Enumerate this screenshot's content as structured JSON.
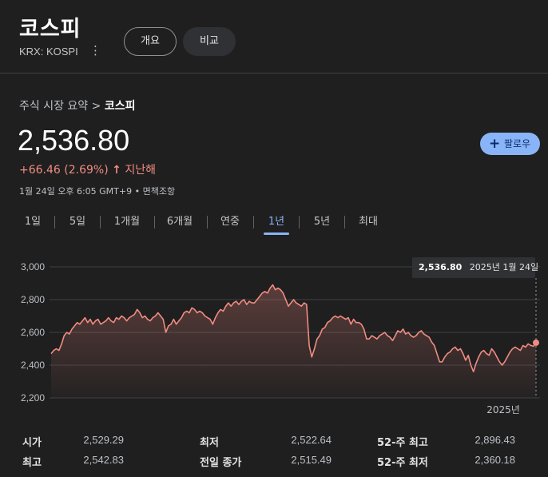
{
  "header": {
    "title": "코스피",
    "ticker": "KRX: KOSPI",
    "tabs": [
      "개요",
      "비교"
    ]
  },
  "breadcrumb": {
    "parent": "주식 시장 요약",
    "separator": ">",
    "current": "코스피"
  },
  "quote": {
    "price": "2,536.80",
    "change": "+66.46 (2.69%)",
    "arrow": "↑",
    "period": "지난해",
    "timestamp": "1월 24일 오후 6:05 GMT+9",
    "disclaimer": "면책조항"
  },
  "follow": {
    "plus": "+",
    "label": "팔로우"
  },
  "ranges": [
    "1일",
    "5일",
    "1개월",
    "6개월",
    "연중",
    "1년",
    "5년",
    "최대"
  ],
  "active_range": "1년",
  "tooltip": {
    "value": "2,536.80",
    "date": "2025년 1월 24일"
  },
  "colors": {
    "line": "#f28b82",
    "accent": "#8ab4f8",
    "background": "#1f1f1f"
  },
  "chart_data": {
    "type": "area",
    "y_ticks": [
      "3,000",
      "2,800",
      "2,600",
      "2,400",
      "2,200"
    ],
    "ylim": [
      2200,
      3000
    ],
    "x_tick_label": "2025년",
    "grid": true,
    "series": [
      {
        "values": [
          2470,
          2490,
          2500,
          2490,
          2530,
          2580,
          2600,
          2590,
          2620,
          2640,
          2660,
          2650,
          2670,
          2690,
          2660,
          2680,
          2650,
          2670,
          2680,
          2650,
          2660,
          2670,
          2690,
          2670,
          2660,
          2690,
          2680,
          2700,
          2690,
          2670,
          2690,
          2700,
          2710,
          2740,
          2720,
          2690,
          2700,
          2680,
          2670,
          2690,
          2700,
          2720,
          2700,
          2680,
          2600,
          2640,
          2650,
          2680,
          2650,
          2670,
          2690,
          2720,
          2730,
          2720,
          2750,
          2740,
          2720,
          2730,
          2720,
          2700,
          2690,
          2680,
          2650,
          2690,
          2720,
          2740,
          2730,
          2760,
          2780,
          2760,
          2780,
          2790,
          2770,
          2790,
          2800,
          2770,
          2790,
          2780,
          2780,
          2800,
          2820,
          2840,
          2850,
          2840,
          2870,
          2890,
          2860,
          2870,
          2860,
          2840,
          2800,
          2760,
          2780,
          2800,
          2780,
          2770,
          2760,
          2780,
          2770,
          2520,
          2450,
          2500,
          2560,
          2580,
          2620,
          2630,
          2660,
          2670,
          2690,
          2700,
          2690,
          2700,
          2690,
          2680,
          2690,
          2650,
          2680,
          2660,
          2660,
          2650,
          2620,
          2560,
          2560,
          2580,
          2570,
          2560,
          2580,
          2590,
          2600,
          2580,
          2570,
          2550,
          2580,
          2610,
          2600,
          2620,
          2590,
          2600,
          2580,
          2570,
          2580,
          2600,
          2610,
          2590,
          2580,
          2570,
          2540,
          2520,
          2470,
          2420,
          2420,
          2450,
          2470,
          2480,
          2500,
          2510,
          2490,
          2500,
          2470,
          2430,
          2460,
          2400,
          2360,
          2410,
          2450,
          2480,
          2490,
          2470,
          2460,
          2500,
          2480,
          2450,
          2420,
          2400,
          2420,
          2450,
          2480,
          2500,
          2510,
          2500,
          2490,
          2520,
          2510,
          2530,
          2520,
          2515,
          2537
        ]
      }
    ]
  },
  "stats": {
    "open_label": "시가",
    "open": "2,529.29",
    "high_label": "최고",
    "high": "2,542.83",
    "low_label": "최저",
    "low": "2,522.64",
    "prev_close_label": "전일 종가",
    "prev_close": "2,515.49",
    "wk52_high_label": "52-주 최고",
    "wk52_high": "2,896.43",
    "wk52_low_label": "52-주 최저",
    "wk52_low": "2,360.18"
  }
}
